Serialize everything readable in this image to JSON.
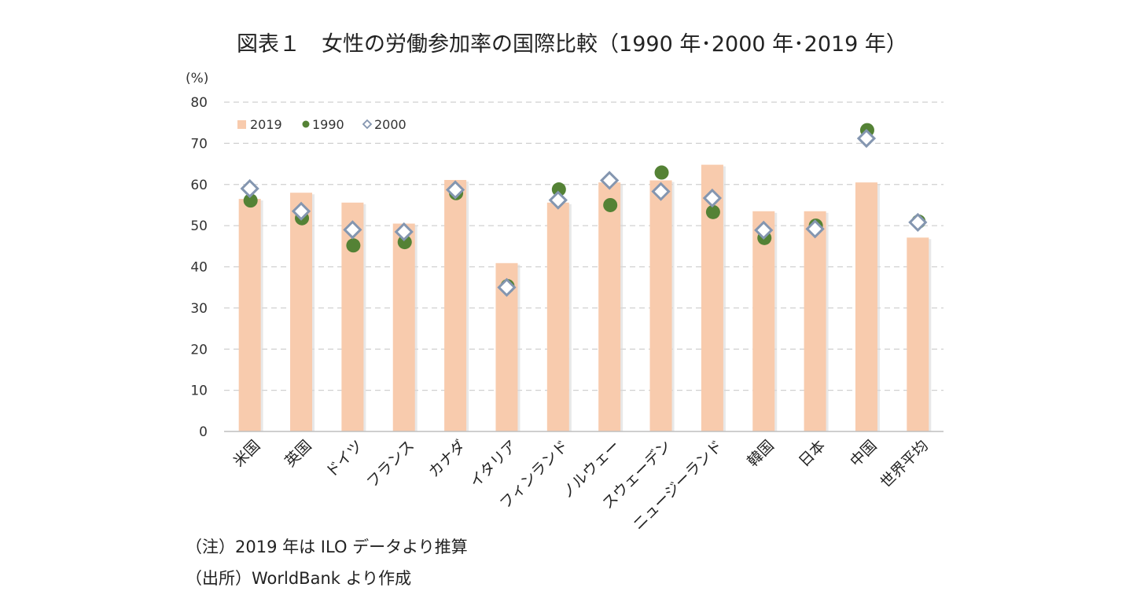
{
  "title": "図表１　女性の労働参加率の国際比較（1990 年･2000 年･2019 年）",
  "notes": {
    "note1": "（注）2019 年は ILO データより推算",
    "note2": "（出所）WorldBank より作成"
  },
  "chart_data": {
    "type": "bar",
    "title": "図表１　女性の労働参加率の国際比較（1990 年･2000 年･2019 年）",
    "ylabel": "(%)",
    "ylim": [
      0,
      80
    ],
    "yticks": [
      0,
      10,
      20,
      30,
      40,
      50,
      60,
      70,
      80
    ],
    "grid": true,
    "legend": "top-left",
    "categories": [
      "米国",
      "英国",
      "ドイツ",
      "フランス",
      "カナダ",
      "イタリア",
      "フィンランド",
      "ノルウェー",
      "スウェーデン",
      "ニュージーランド",
      "韓国",
      "日本",
      "中国",
      "世界平均"
    ],
    "series": [
      {
        "name": "2019",
        "kind": "bar",
        "color": "#f8cbad",
        "values": [
          56.5,
          58.0,
          55.6,
          50.5,
          61.1,
          40.9,
          55.6,
          60.5,
          61.0,
          64.8,
          53.5,
          53.5,
          60.5,
          47.1
        ]
      },
      {
        "name": "1990",
        "kind": "dot",
        "color": "#548235",
        "values": [
          56.1,
          51.8,
          45.2,
          46.0,
          57.9,
          35.3,
          58.8,
          55.0,
          62.9,
          53.3,
          47.0,
          50.0,
          73.2,
          51.0
        ]
      },
      {
        "name": "2000",
        "kind": "diamond",
        "color": "#8496b0",
        "values": [
          59.0,
          53.5,
          49.0,
          48.5,
          58.7,
          35.0,
          56.2,
          61.0,
          58.3,
          56.7,
          48.9,
          49.2,
          71.2,
          50.8
        ]
      }
    ]
  }
}
